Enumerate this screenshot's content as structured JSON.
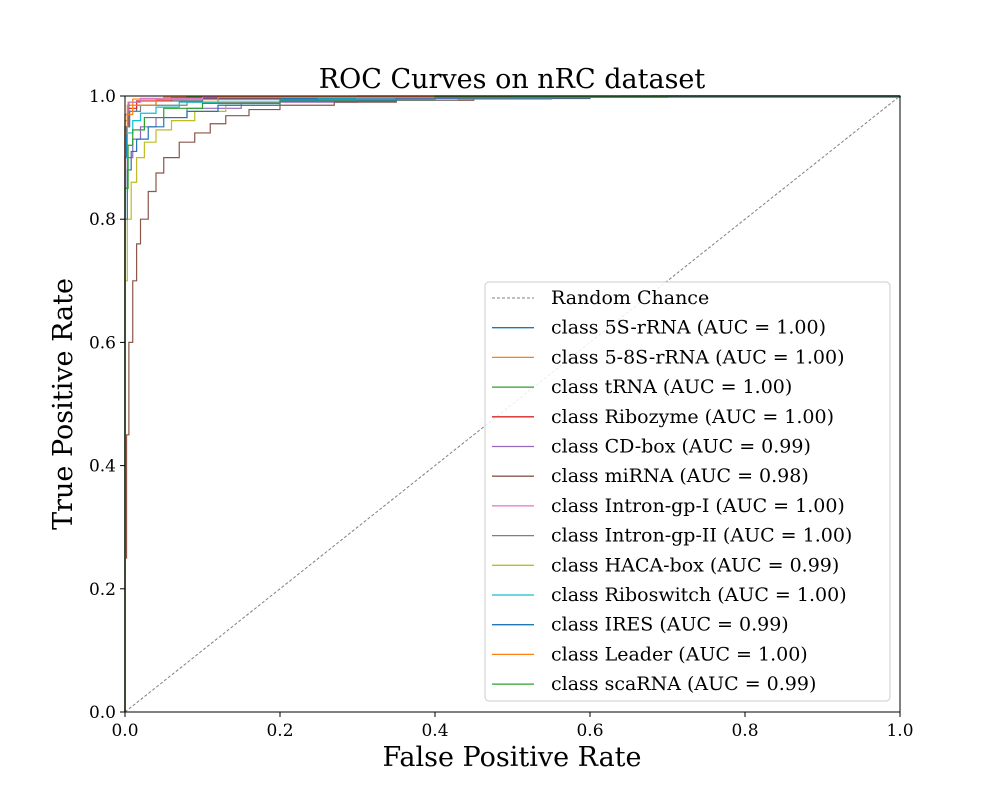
{
  "chart_data": {
    "type": "line",
    "title": "ROC Curves on nRC dataset",
    "xlabel": "False Positive Rate",
    "ylabel": "True Positive Rate",
    "xlim": [
      0,
      1
    ],
    "ylim": [
      0,
      1
    ],
    "x_ticks": [
      0.0,
      0.2,
      0.4,
      0.6,
      0.8,
      1.0
    ],
    "y_ticks": [
      0.0,
      0.2,
      0.4,
      0.6,
      0.8,
      1.0
    ],
    "x_tick_labels": [
      "0.0",
      "0.2",
      "0.4",
      "0.6",
      "0.8",
      "1.0"
    ],
    "y_tick_labels": [
      "0.0",
      "0.2",
      "0.4",
      "0.6",
      "0.8",
      "1.0"
    ],
    "grid": false,
    "legend_position": "lower-right",
    "baseline": {
      "name": "Random Chance",
      "color": "#808080",
      "dashed": true,
      "points": [
        [
          0,
          0
        ],
        [
          1,
          1
        ]
      ]
    },
    "series": [
      {
        "name": "class 5S-rRNA (AUC = 1.00)",
        "color": "#1f77b4",
        "points": [
          [
            0,
            0
          ],
          [
            0,
            0.9
          ],
          [
            0.002,
            0.95
          ],
          [
            0.006,
            0.975
          ],
          [
            0.015,
            0.985
          ],
          [
            0.04,
            0.992
          ],
          [
            0.1,
            0.996
          ],
          [
            0.3,
            0.999
          ],
          [
            0.64,
            1.0
          ],
          [
            1,
            1
          ]
        ]
      },
      {
        "name": "class 5-8S-rRNA (AUC = 1.00)",
        "color": "#ff7f0e",
        "points": [
          [
            0,
            0
          ],
          [
            0,
            0.96
          ],
          [
            0.003,
            0.985
          ],
          [
            0.01,
            0.995
          ],
          [
            0.05,
            0.998
          ],
          [
            0.2,
            0.999
          ],
          [
            0.69,
            1.0
          ],
          [
            1,
            1
          ]
        ]
      },
      {
        "name": "class tRNA (AUC = 1.00)",
        "color": "#2ca02c",
        "points": [
          [
            0,
            0
          ],
          [
            0,
            0.97
          ],
          [
            0.005,
            0.99
          ],
          [
            0.02,
            0.996
          ],
          [
            0.08,
            0.998
          ],
          [
            0.3,
            1.0
          ],
          [
            1,
            1
          ]
        ]
      },
      {
        "name": "class Ribozyme (AUC = 1.00)",
        "color": "#d62728",
        "points": [
          [
            0,
            0
          ],
          [
            0,
            0.95
          ],
          [
            0.004,
            0.98
          ],
          [
            0.015,
            0.992
          ],
          [
            0.06,
            0.997
          ],
          [
            0.2,
            0.999
          ],
          [
            0.68,
            1.0
          ],
          [
            1,
            1
          ]
        ]
      },
      {
        "name": "class CD-box (AUC = 0.99)",
        "color": "#9467bd",
        "points": [
          [
            0,
            0
          ],
          [
            0,
            0.85
          ],
          [
            0.003,
            0.9
          ],
          [
            0.01,
            0.93
          ],
          [
            0.02,
            0.95
          ],
          [
            0.04,
            0.965
          ],
          [
            0.08,
            0.98
          ],
          [
            0.15,
            0.99
          ],
          [
            0.3,
            0.996
          ],
          [
            0.5,
            0.999
          ],
          [
            1,
            1
          ]
        ]
      },
      {
        "name": "class miRNA (AUC = 0.98)",
        "color": "#8c564b",
        "points": [
          [
            0,
            0
          ],
          [
            0,
            0.25
          ],
          [
            0.002,
            0.45
          ],
          [
            0.005,
            0.6
          ],
          [
            0.01,
            0.7
          ],
          [
            0.015,
            0.76
          ],
          [
            0.02,
            0.8
          ],
          [
            0.03,
            0.845
          ],
          [
            0.04,
            0.875
          ],
          [
            0.05,
            0.9
          ],
          [
            0.07,
            0.925
          ],
          [
            0.09,
            0.94
          ],
          [
            0.11,
            0.955
          ],
          [
            0.13,
            0.968
          ],
          [
            0.16,
            0.978
          ],
          [
            0.2,
            0.985
          ],
          [
            0.27,
            0.99
          ],
          [
            0.35,
            0.993
          ],
          [
            0.45,
            0.996
          ],
          [
            0.6,
            0.999
          ],
          [
            1,
            1
          ]
        ]
      },
      {
        "name": "class Intron-gp-I (AUC = 1.00)",
        "color": "#e377c2",
        "points": [
          [
            0,
            0
          ],
          [
            0,
            0.97
          ],
          [
            0.004,
            0.99
          ],
          [
            0.02,
            0.996
          ],
          [
            0.1,
            0.999
          ],
          [
            0.4,
            1.0
          ],
          [
            1,
            1
          ]
        ]
      },
      {
        "name": "class Intron-gp-II (AUC = 1.00)",
        "color": "#7f7f7f",
        "points": [
          [
            0,
            0
          ],
          [
            0,
            0.95
          ],
          [
            0.005,
            0.975
          ],
          [
            0.02,
            0.985
          ],
          [
            0.08,
            0.99
          ],
          [
            0.2,
            0.993
          ],
          [
            0.43,
            0.995
          ],
          [
            0.55,
            0.998
          ],
          [
            1,
            1
          ]
        ]
      },
      {
        "name": "class HACA-box (AUC = 0.99)",
        "color": "#bcbd22",
        "points": [
          [
            0,
            0
          ],
          [
            0,
            0.7
          ],
          [
            0.003,
            0.8
          ],
          [
            0.008,
            0.86
          ],
          [
            0.015,
            0.9
          ],
          [
            0.025,
            0.925
          ],
          [
            0.04,
            0.945
          ],
          [
            0.06,
            0.96
          ],
          [
            0.09,
            0.975
          ],
          [
            0.13,
            0.985
          ],
          [
            0.2,
            0.993
          ],
          [
            0.3,
            0.997
          ],
          [
            0.5,
            0.999
          ],
          [
            1,
            1
          ]
        ]
      },
      {
        "name": "class Riboswitch (AUC = 1.00)",
        "color": "#17becf",
        "points": [
          [
            0,
            0
          ],
          [
            0,
            0.9
          ],
          [
            0.003,
            0.94
          ],
          [
            0.01,
            0.96
          ],
          [
            0.02,
            0.972
          ],
          [
            0.04,
            0.982
          ],
          [
            0.07,
            0.99
          ],
          [
            0.12,
            0.994
          ],
          [
            0.25,
            0.997
          ],
          [
            0.5,
            0.999
          ],
          [
            1,
            1
          ]
        ]
      },
      {
        "name": "class IRES (AUC = 0.99)",
        "color": "#1f77b4",
        "points": [
          [
            0,
            0
          ],
          [
            0,
            0.8
          ],
          [
            0.003,
            0.88
          ],
          [
            0.008,
            0.91
          ],
          [
            0.015,
            0.93
          ],
          [
            0.03,
            0.95
          ],
          [
            0.05,
            0.965
          ],
          [
            0.08,
            0.975
          ],
          [
            0.12,
            0.985
          ],
          [
            0.2,
            0.992
          ],
          [
            0.35,
            0.997
          ],
          [
            0.6,
            0.999
          ],
          [
            1,
            1
          ]
        ]
      },
      {
        "name": "class Leader (AUC = 1.00)",
        "color": "#ff7f0e",
        "points": [
          [
            0,
            0
          ],
          [
            0,
            0.94
          ],
          [
            0.003,
            0.97
          ],
          [
            0.01,
            0.985
          ],
          [
            0.04,
            0.994
          ],
          [
            0.12,
            0.998
          ],
          [
            0.4,
            1.0
          ],
          [
            1,
            1
          ]
        ]
      },
      {
        "name": "class scaRNA (AUC = 0.99)",
        "color": "#2ca02c",
        "points": [
          [
            0,
            0
          ],
          [
            0,
            0.85
          ],
          [
            0.004,
            0.92
          ],
          [
            0.01,
            0.945
          ],
          [
            0.025,
            0.965
          ],
          [
            0.05,
            0.98
          ],
          [
            0.1,
            0.988
          ],
          [
            0.2,
            0.994
          ],
          [
            0.4,
            0.998
          ],
          [
            0.7,
            1.0
          ],
          [
            1,
            1
          ]
        ]
      }
    ]
  }
}
